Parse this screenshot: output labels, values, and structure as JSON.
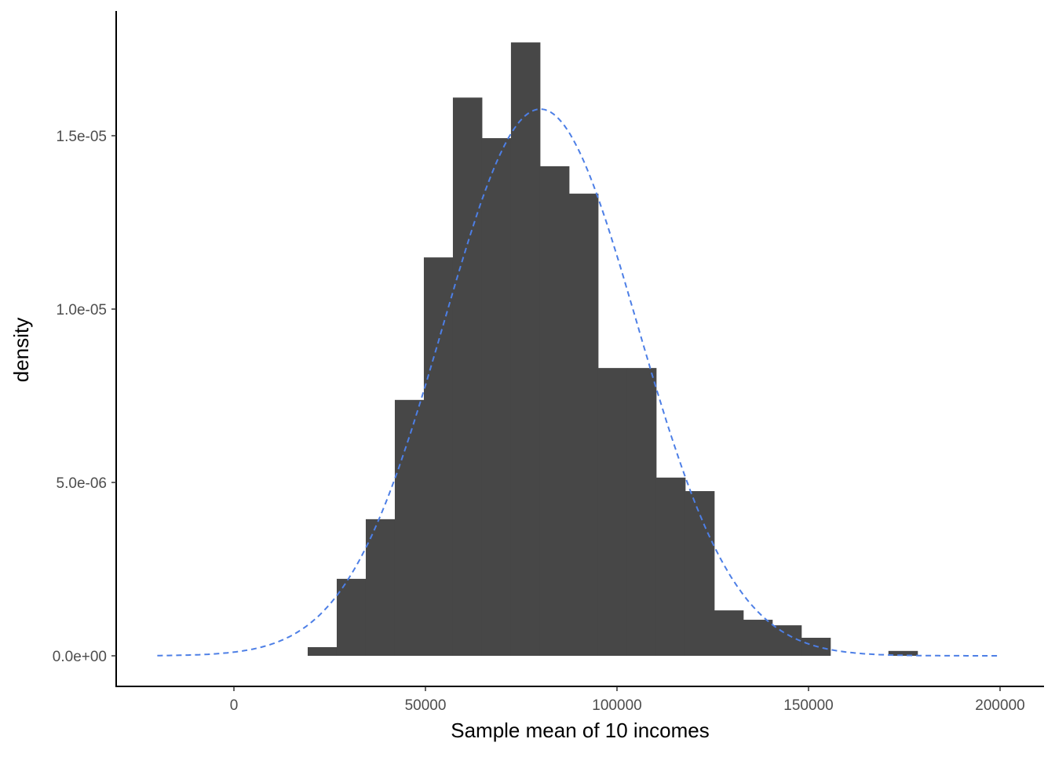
{
  "chart_data": {
    "type": "bar",
    "subtype": "histogram-with-normal-curve",
    "title": "",
    "xlabel": "Sample mean of 10 incomes",
    "ylabel": "density",
    "xlim": [
      -30000,
      210000
    ],
    "ylim": [
      -1.7e-06,
      1.85e-05
    ],
    "grid": false,
    "x_ticks": [
      0,
      50000,
      100000,
      150000,
      200000
    ],
    "x_tick_labels": [
      "0",
      "50000",
      "100000",
      "150000",
      "200000"
    ],
    "y_ticks": [
      0,
      5e-06,
      1e-05,
      1.5e-05
    ],
    "y_tick_labels": [
      "0.0e+00",
      "5.0e-06",
      "1.0e-05",
      "1.5e-05"
    ],
    "bin_start": 19260,
    "bin_width": 7580,
    "values": [
      2.5e-07,
      2.22e-06,
      3.94e-06,
      7.38e-06,
      1.149e-05,
      1.61e-05,
      1.493e-05,
      1.769e-05,
      1.412e-05,
      1.333e-05,
      8.3e-06,
      8.3e-06,
      5.14e-06,
      4.75e-06,
      1.31e-06,
      1.04e-06,
      8.8e-07,
      5.2e-07,
      0,
      0,
      1.4e-07
    ],
    "bar_color": "#474747",
    "curve": {
      "type": "normal",
      "mean": 80000,
      "sd": 25300,
      "x_range": [
        -20000,
        200000
      ],
      "color": "#4d7fe6",
      "style": "dashed"
    }
  }
}
